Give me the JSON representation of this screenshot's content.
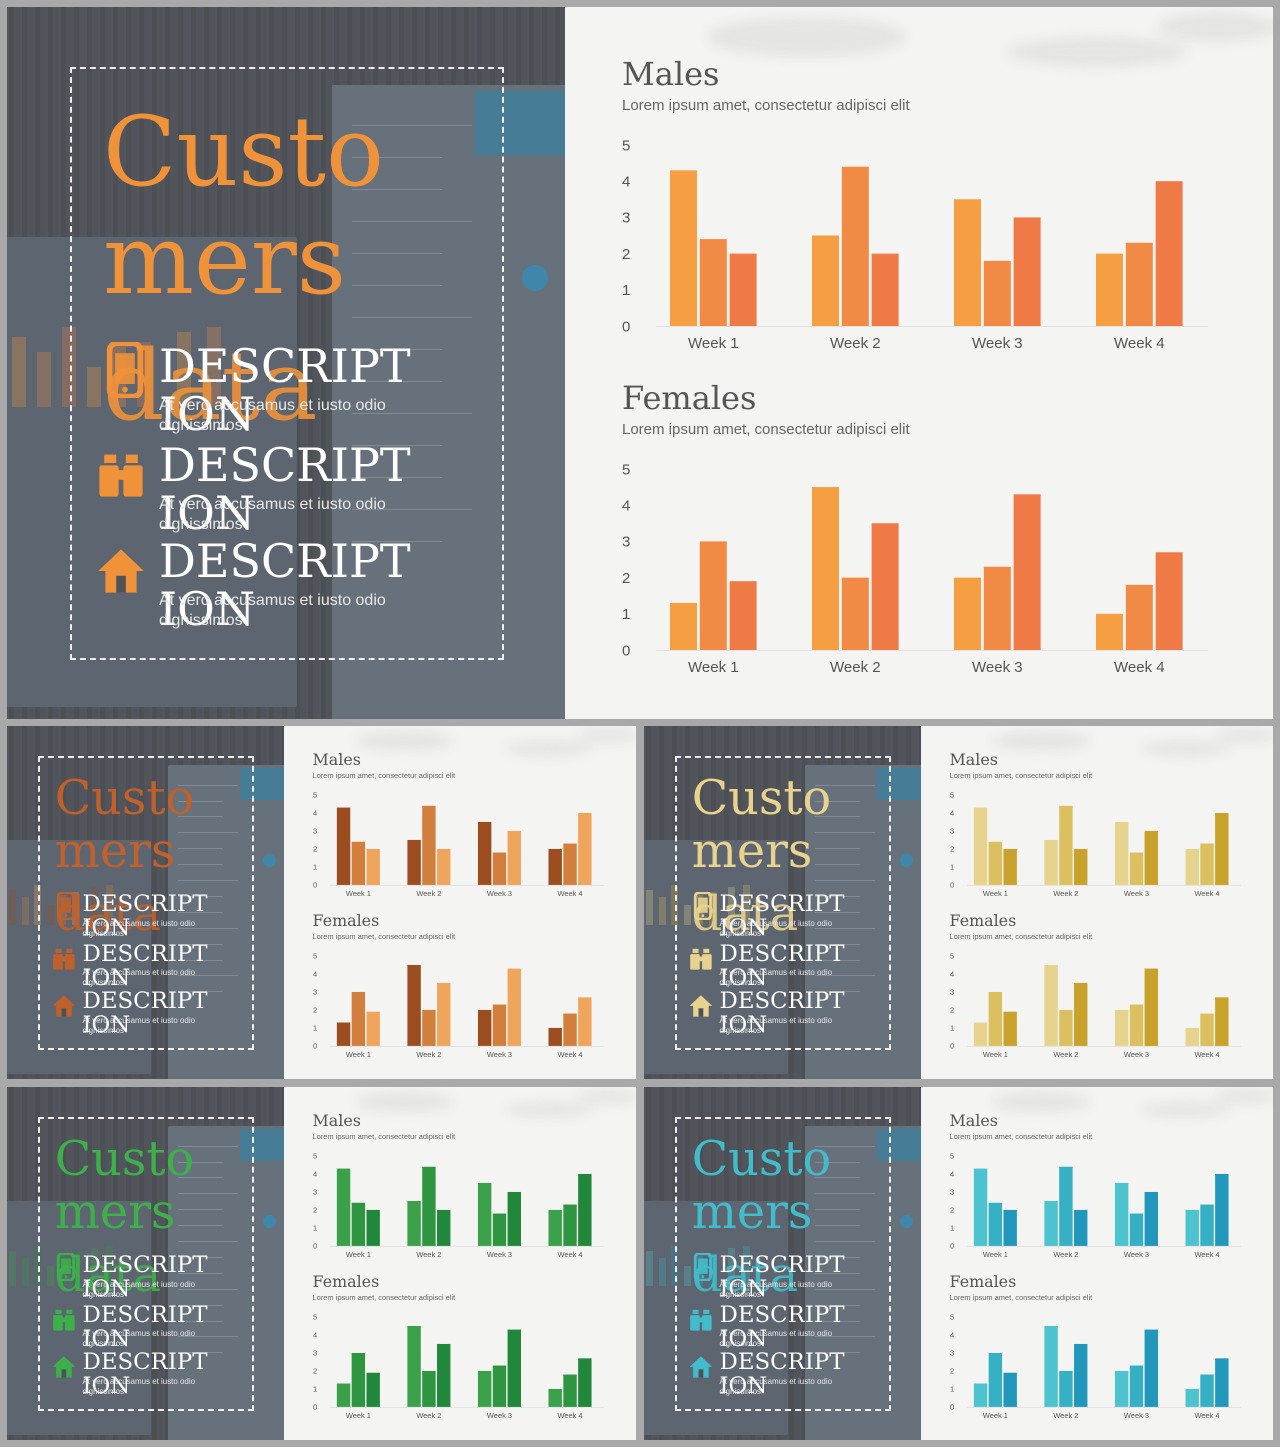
{
  "slide": {
    "title": "Custo\nmers",
    "overlay_word": "data",
    "items": [
      {
        "heading": "DESCRIPT ION",
        "text": "At vero accusamus et iusto odio dignissimos",
        "icon": "mobile-phone-icon"
      },
      {
        "heading": "DESCRIPT ION",
        "text": "At vero accusamus et iusto odio dignissimos",
        "icon": "binoculars-icon"
      },
      {
        "heading": "DESCRIPT ION",
        "text": "At vero accusamus et iusto odio dignissimos",
        "icon": "home-icon"
      }
    ]
  },
  "charts": {
    "males": {
      "title": "Males",
      "subtitle": "Lorem ipsum amet, consectetur adipisci  elit"
    },
    "females": {
      "title": "Females",
      "subtitle": "Lorem ipsum amet, consectetur adipisci  elit"
    }
  },
  "themes": [
    {
      "name": "orange",
      "accent": "#f0923a",
      "bars": [
        "#f59e42",
        "#f08a45",
        "#ef7a45"
      ]
    },
    {
      "name": "brown",
      "accent": "#c0602b",
      "bars": [
        "#9c4d1f",
        "#d27e3c",
        "#efa55c"
      ]
    },
    {
      "name": "gold",
      "accent": "#e8d38e",
      "bars": [
        "#e6d38e",
        "#dcc060",
        "#c9a22c"
      ]
    },
    {
      "name": "green",
      "accent": "#3db04b",
      "bars": [
        "#3aa14a",
        "#2e9640",
        "#21873a"
      ]
    },
    {
      "name": "teal",
      "accent": "#42bccb",
      "bars": [
        "#4cc3cf",
        "#35b0c5",
        "#2198bb"
      ]
    }
  ],
  "chart_data": [
    {
      "type": "bar",
      "title": "Males",
      "subtitle": "Lorem ipsum amet, consectetur adipisci  elit",
      "categories": [
        "Week 1",
        "Week 2",
        "Week 3",
        "Week 4"
      ],
      "y_ticks": [
        "0",
        "1",
        "2",
        "3",
        "4",
        "5"
      ],
      "ylim": [
        0,
        5
      ],
      "series": [
        {
          "values": [
            4.3,
            2.5,
            3.5,
            2.0
          ]
        },
        {
          "values": [
            2.4,
            4.4,
            1.8,
            2.3
          ]
        },
        {
          "values": [
            2.0,
            2.0,
            3.0,
            4.0
          ]
        }
      ]
    },
    {
      "type": "bar",
      "title": "Females",
      "subtitle": "Lorem ipsum amet, consectetur adipisci  elit",
      "categories": [
        "Week 1",
        "Week 2",
        "Week 3",
        "Week 4"
      ],
      "y_ticks": [
        "0",
        "1",
        "2",
        "3",
        "4",
        "5"
      ],
      "ylim": [
        0,
        5
      ],
      "series": [
        {
          "values": [
            1.3,
            4.5,
            2.0,
            1.0
          ]
        },
        {
          "values": [
            3.0,
            2.0,
            2.3,
            1.8
          ]
        },
        {
          "values": [
            1.9,
            3.5,
            4.3,
            2.7
          ]
        }
      ]
    }
  ]
}
